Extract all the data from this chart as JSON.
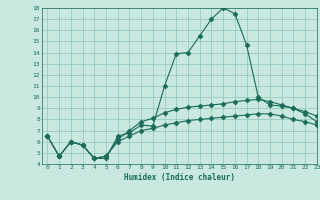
{
  "x": [
    0,
    1,
    2,
    3,
    4,
    5,
    6,
    7,
    8,
    9,
    10,
    11,
    12,
    13,
    14,
    15,
    16,
    17,
    18,
    19,
    20,
    21,
    22,
    23
  ],
  "line1": [
    6.5,
    4.7,
    6.0,
    5.7,
    4.5,
    4.5,
    6.5,
    6.8,
    7.5,
    7.4,
    11.0,
    13.9,
    14.0,
    15.5,
    17.0,
    18.0,
    17.5,
    14.7,
    10.0,
    9.3,
    9.2,
    9.0,
    8.5,
    7.8
  ],
  "line2": [
    6.5,
    4.7,
    6.0,
    5.7,
    4.5,
    4.7,
    6.2,
    7.0,
    7.8,
    8.1,
    8.6,
    8.9,
    9.1,
    9.2,
    9.3,
    9.4,
    9.6,
    9.7,
    9.8,
    9.6,
    9.3,
    9.0,
    8.7,
    8.3
  ],
  "line3": [
    6.5,
    4.7,
    6.0,
    5.7,
    4.5,
    4.7,
    6.0,
    6.5,
    7.0,
    7.2,
    7.5,
    7.7,
    7.9,
    8.0,
    8.1,
    8.2,
    8.3,
    8.4,
    8.5,
    8.5,
    8.3,
    8.0,
    7.8,
    7.5
  ],
  "bg_color": "#c8e8e0",
  "grid_color": "#99ccbe",
  "line_color": "#1a6b5a",
  "xlabel": "Humidex (Indice chaleur)",
  "ylim": [
    4,
    18
  ],
  "xlim": [
    -0.5,
    23
  ],
  "yticks": [
    4,
    5,
    6,
    7,
    8,
    9,
    10,
    11,
    12,
    13,
    14,
    15,
    16,
    17,
    18
  ],
  "xticks": [
    0,
    1,
    2,
    3,
    4,
    5,
    6,
    7,
    8,
    9,
    10,
    11,
    12,
    13,
    14,
    15,
    16,
    17,
    18,
    19,
    20,
    21,
    22,
    23
  ],
  "marker": "D",
  "marker_size": 2.5,
  "linewidth": 0.8
}
